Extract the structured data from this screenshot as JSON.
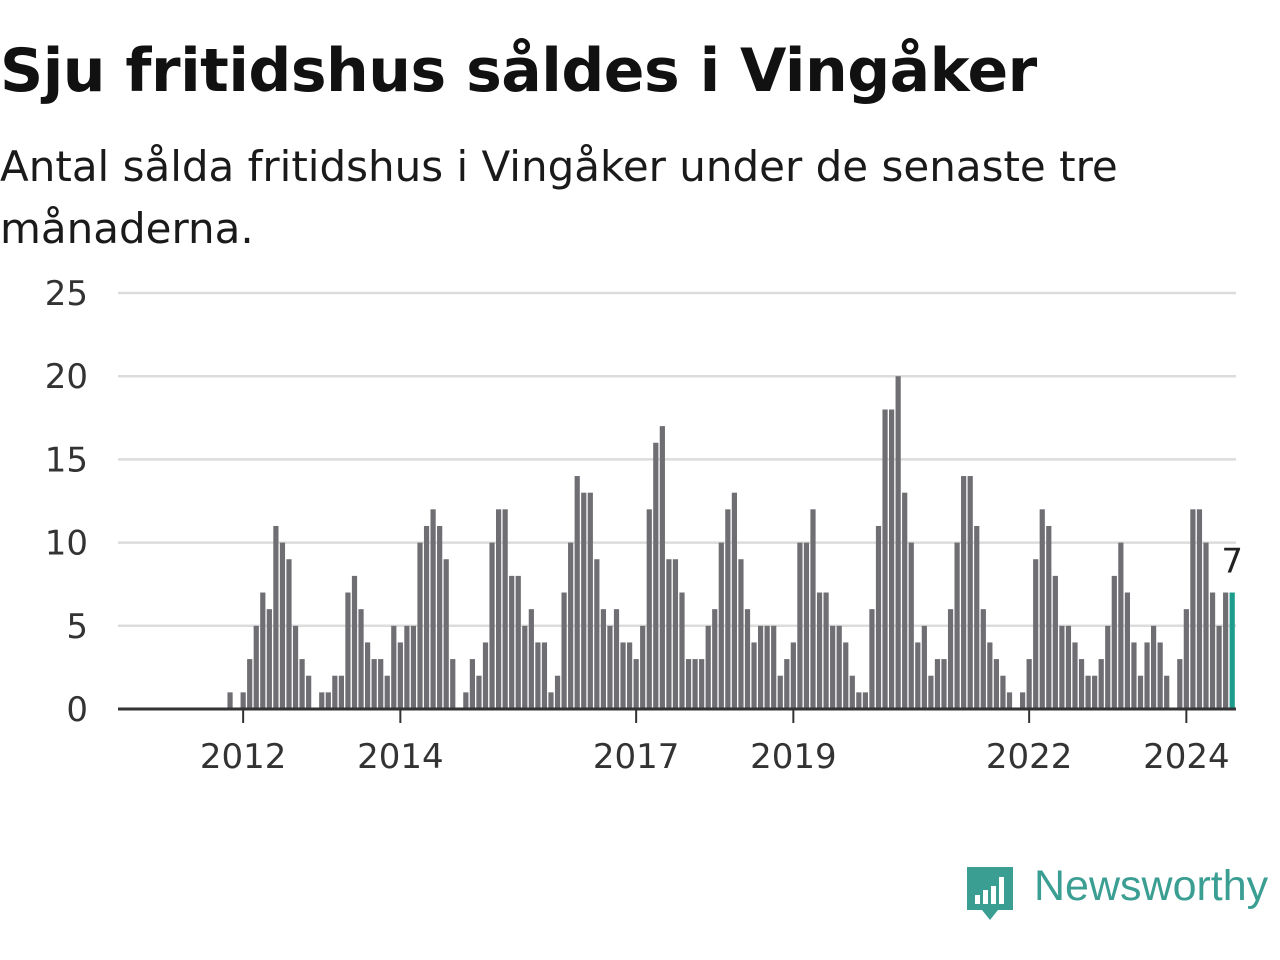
{
  "title": "Sju fritidshus såldes i Vingåker",
  "subtitle": "Antal sålda fritidshus i Vingåker under de senaste tre månaderna.",
  "colors": {
    "bar": "#6e6e73",
    "highlight": "#1c9c8c",
    "grid": "#dcdcdc",
    "axis": "#333333",
    "brand": "#3b9e93"
  },
  "logo": {
    "text": "Newsworthy",
    "icon": "newsworthy-bar-chart-icon"
  },
  "chart_data": {
    "type": "bar",
    "title": "Sju fritidshus såldes i Vingåker",
    "subtitle": "Antal sålda fritidshus i Vingåker under de senaste tre månaderna.",
    "xlabel": "",
    "ylabel": "",
    "ylim": [
      0,
      25
    ],
    "yticks": [
      0,
      5,
      10,
      15,
      20,
      25
    ],
    "xtick_labels": [
      "2012",
      "2014",
      "2017",
      "2019",
      "2022",
      "2024"
    ],
    "grid": true,
    "last_value_label": "7",
    "series": [
      {
        "values": [
          0,
          0,
          0,
          0,
          0,
          0,
          0,
          0,
          0,
          1,
          0,
          1,
          3,
          5,
          7,
          6,
          11,
          10,
          9,
          5,
          3,
          2,
          0,
          1,
          1,
          2,
          2,
          7,
          8,
          6,
          4,
          3,
          3,
          2,
          5,
          4,
          5,
          5,
          10,
          11,
          12,
          11,
          9,
          3,
          0,
          1,
          3,
          2,
          4,
          10,
          12,
          12,
          8,
          8,
          5,
          6,
          4,
          4,
          1,
          2,
          7,
          10,
          14,
          13,
          13,
          9,
          6,
          5,
          6,
          4,
          4,
          3,
          5,
          12,
          16,
          17,
          9,
          9,
          7,
          3,
          3,
          3,
          5,
          6,
          10,
          12,
          13,
          9,
          6,
          4,
          5,
          5,
          5,
          2,
          3,
          4,
          10,
          10,
          12,
          7,
          7,
          5,
          5,
          4,
          2,
          1,
          1,
          6,
          11,
          18,
          18,
          20,
          13,
          10,
          4,
          5,
          2,
          3,
          3,
          6,
          10,
          14,
          14,
          11,
          6,
          4,
          3,
          2,
          1,
          0,
          1,
          3,
          9,
          12,
          11,
          8,
          5,
          5,
          4,
          3,
          2,
          2,
          3,
          5,
          8,
          10,
          7,
          4,
          2,
          4,
          5,
          4,
          2,
          0,
          3,
          6,
          12,
          12,
          10,
          7,
          5,
          7,
          7
        ]
      }
    ]
  }
}
